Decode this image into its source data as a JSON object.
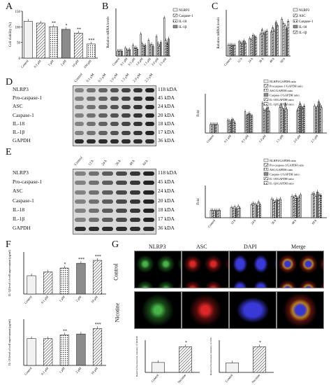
{
  "panels": {
    "A": "A",
    "B": "B",
    "C": "C",
    "D": "D",
    "E": "E",
    "F": "F",
    "G": "G"
  },
  "chart_data": [
    {
      "panel": "A",
      "type": "bar",
      "ylabel": "Cell viability (%)",
      "ylim": [
        0,
        150
      ],
      "yticks": [
        "0",
        "50",
        "100",
        "150"
      ],
      "categories": [
        "Control",
        "0.1 μM",
        "1 μM",
        "2 μM",
        "10 μM",
        "100 μM"
      ],
      "values": [
        118,
        112,
        100,
        92,
        80,
        45
      ],
      "annotations": [
        "",
        "",
        "**",
        "*",
        "**",
        "***"
      ]
    },
    {
      "panel": "B",
      "type": "bar",
      "ylabel": "Relative mRNA levels",
      "categories": [
        "Control",
        "0.1 μM",
        "0.5 μM",
        "1.0 μM",
        "1.5 μM",
        "2.0 μM",
        "2.5 μM"
      ],
      "series": [
        {
          "name": "NLRP3",
          "values": [
            1,
            1.6,
            2.2,
            4.5,
            3.2,
            4.0,
            7.8
          ]
        },
        {
          "name": "Caspase-1",
          "values": [
            1,
            1.2,
            1.5,
            2.5,
            2.2,
            2.6,
            3.2
          ]
        },
        {
          "name": "IL-18",
          "values": [
            1,
            1.1,
            1.7,
            2.0,
            2.4,
            2.0,
            2.5
          ]
        },
        {
          "name": "IL-1β",
          "values": [
            1,
            1.3,
            1.4,
            2.2,
            2.0,
            2.8,
            3.5
          ]
        }
      ]
    },
    {
      "panel": "C",
      "type": "bar",
      "ylabel": "Relative mRNA levels",
      "categories": [
        "Control",
        "12 h",
        "24 h",
        "36 h",
        "48 h",
        "60 h"
      ],
      "series": [
        {
          "name": "NLRP3",
          "values": [
            1,
            1.3,
            1.6,
            2.0,
            2.2,
            3.4
          ]
        },
        {
          "name": "ASC",
          "values": [
            1,
            1.2,
            1.5,
            2.4,
            2.6,
            3.0
          ]
        },
        {
          "name": "Caspase-1",
          "values": [
            1,
            1.2,
            1.9,
            2.0,
            2.3,
            2.8
          ]
        },
        {
          "name": "IL-18",
          "values": [
            1,
            1.4,
            1.8,
            2.2,
            3.1,
            2.5
          ]
        },
        {
          "name": "IL-1β",
          "values": [
            1,
            1.2,
            1.7,
            2.3,
            2.8,
            3.2
          ]
        }
      ]
    },
    {
      "panel": "D",
      "type": "bar",
      "ylabel": "Fold",
      "categories": [
        "Control",
        "0.1 μM",
        "0.5 μM",
        "1.0 μM",
        "1.5 μM",
        "2.0 μM",
        "2.5 μM"
      ],
      "series": [
        {
          "name": "NLRP3/GAPDH ratio",
          "values": [
            1,
            1.5,
            2.5,
            3.5,
            3.0,
            2.6,
            3.2
          ]
        },
        {
          "name": "Procaspase-1/GAPDH ratio",
          "values": [
            1,
            1.4,
            2.0,
            2.7,
            3.3,
            3.0,
            2.9
          ]
        },
        {
          "name": "ASC/GAPDH ratio",
          "values": [
            1,
            1.3,
            2.2,
            2.6,
            2.9,
            3.5,
            3.1
          ]
        },
        {
          "name": "Caspase-1/GAPDH ratio",
          "values": [
            1,
            1.6,
            2.3,
            2.9,
            2.7,
            3.1,
            3.7
          ]
        },
        {
          "name": "IL-18/GAPDH ratio",
          "values": [
            1,
            1.5,
            2.1,
            3.0,
            3.4,
            2.9,
            3.3
          ]
        },
        {
          "name": "IL-1β/GAPDH ratio",
          "values": [
            1,
            1.2,
            2.0,
            2.5,
            2.8,
            3.2,
            3.0
          ]
        }
      ]
    },
    {
      "panel": "E",
      "type": "bar",
      "ylabel": "Fold",
      "categories": [
        "Control",
        "12 h",
        "24 h",
        "36 h",
        "48 h",
        "60 h"
      ],
      "series": [
        {
          "name": "NLRP3/GAPDH ratio",
          "values": [
            1,
            1.4,
            1.8,
            2.6,
            3.0,
            3.3
          ]
        },
        {
          "name": "Pro-caspase-1/GAPDH ratio",
          "values": [
            1,
            1.3,
            2.0,
            2.4,
            2.8,
            3.4
          ]
        },
        {
          "name": "ASC/GAPDH ratio",
          "values": [
            1,
            1.5,
            1.9,
            2.2,
            3.1,
            3.0
          ]
        },
        {
          "name": "Caspase-1/GAPDH ratio",
          "values": [
            1,
            1.2,
            1.7,
            2.5,
            2.7,
            3.6
          ]
        },
        {
          "name": "IL-18/GAPDH ratio",
          "values": [
            1,
            1.6,
            2.2,
            2.4,
            2.9,
            3.2
          ]
        },
        {
          "name": "IL-1β/GAPDH ratio",
          "values": [
            1,
            1.3,
            1.8,
            2.6,
            3.2,
            3.1
          ]
        }
      ]
    },
    {
      "panel": "F-top",
      "type": "bar",
      "ylabel": "IL-1β level of cell supernatant (pg/ml)",
      "categories": [
        "Control",
        "0.1 μM",
        "1 μM",
        "2 μM",
        "10 μM"
      ],
      "values": [
        95,
        115,
        135,
        160,
        175
      ],
      "annotations": [
        "",
        "",
        "*",
        "***",
        "***"
      ]
    },
    {
      "panel": "F-bottom",
      "type": "bar",
      "ylabel": "IL-18 level of cell supernatant (pg/ml)",
      "categories": [
        "Control",
        "0.1 μM",
        "1 μM",
        "2 μM",
        "10 μM"
      ],
      "values": [
        58,
        58,
        66,
        68,
        80
      ],
      "annotations": [
        "",
        "",
        "**",
        "",
        "***"
      ]
    },
    {
      "panel": "G-left",
      "type": "bar",
      "ylabel": "Relative fluorescence intensity of NLRP3",
      "categories": [
        "Control",
        "Nicotine"
      ],
      "values": [
        1.0,
        2.6
      ],
      "annotations": [
        "",
        "*"
      ]
    },
    {
      "panel": "G-right",
      "type": "bar",
      "ylabel": "Relative fluorescence intensity of ASC",
      "categories": [
        "Control",
        "Nicotine"
      ],
      "values": [
        1.0,
        2.7
      ],
      "annotations": [
        "",
        "*"
      ]
    }
  ],
  "blots": {
    "D": {
      "lanes": [
        "Control",
        "0.1 μM",
        "0.5 μM",
        "1.0 μM",
        "1.5 μM",
        "2.0 μM",
        "2.5 μM"
      ],
      "rows": [
        {
          "label": "NLRP3",
          "kda": "118 kDA"
        },
        {
          "label": "Pro-caspase-1",
          "kda": "45 kDA"
        },
        {
          "label": "ASC",
          "kda": "24 kDA"
        },
        {
          "label": "Caspase-1",
          "kda": "20 kDA"
        },
        {
          "label": "IL-18",
          "kda": "18 kDA"
        },
        {
          "label": "IL-1β",
          "kda": "17 kDA"
        },
        {
          "label": "GAPDH",
          "kda": "36 kDA"
        }
      ]
    },
    "E": {
      "lanes": [
        "Control",
        "12 h",
        "24 h",
        "36 h",
        "48 h",
        "60 h"
      ],
      "rows": [
        {
          "label": "NLRP3",
          "kda": "118 kDA"
        },
        {
          "label": "Pro-caspase-1",
          "kda": "45 kDA"
        },
        {
          "label": "ASC",
          "kda": "24 kDA"
        },
        {
          "label": "Caspase-1",
          "kda": "20 kDA"
        },
        {
          "label": "IL-18",
          "kda": "18 kDA"
        },
        {
          "label": "IL-1β",
          "kda": "17 kDA"
        },
        {
          "label": "GAPDH",
          "kda": "36 kDA"
        }
      ]
    }
  },
  "micro": {
    "columns": [
      "NLRP3",
      "ASC",
      "DAPI",
      "Merge"
    ],
    "rows": [
      "Control",
      "Nicotine"
    ]
  }
}
